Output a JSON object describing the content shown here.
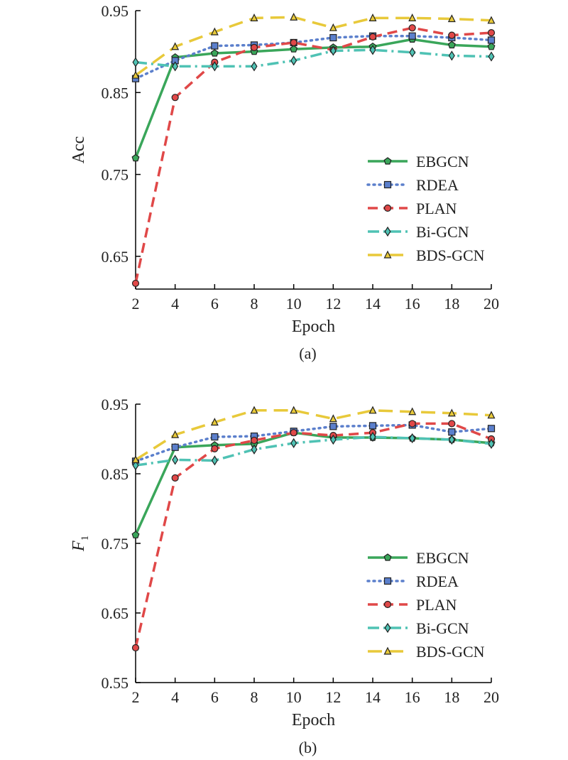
{
  "figure": {
    "captions": [
      "(a)",
      "(b)"
    ]
  },
  "colors": {
    "EBGCN": "#3aa65a",
    "RDEA": "#5b7fcc",
    "PLAN": "#e04848",
    "Bi-GCN": "#4fc2b4",
    "BDS-GCN": "#e8c93a"
  },
  "chart_data": [
    {
      "type": "line",
      "caption": "(a)",
      "xlabel": "Epoch",
      "ylabel": "Acc",
      "x": [
        2,
        4,
        6,
        8,
        10,
        12,
        14,
        16,
        18,
        20
      ],
      "xticks": [
        "2",
        "4",
        "6",
        "8",
        "10",
        "12",
        "14",
        "16",
        "18",
        "20"
      ],
      "ylim": [
        0.61,
        0.95
      ],
      "yticks": [
        "0.65",
        "0.75",
        "0.85",
        "0.95"
      ],
      "ytick_values": [
        0.65,
        0.75,
        0.85,
        0.95
      ],
      "legend_position": "lower-right",
      "series": [
        {
          "name": "EBGCN",
          "marker": "pentagon",
          "dash": "solid",
          "values": [
            0.77,
            0.893,
            0.898,
            0.9,
            0.903,
            0.905,
            0.906,
            0.915,
            0.908,
            0.906
          ]
        },
        {
          "name": "RDEA",
          "marker": "square",
          "dash": "dotted",
          "values": [
            0.867,
            0.889,
            0.907,
            0.908,
            0.911,
            0.917,
            0.919,
            0.919,
            0.917,
            0.914
          ]
        },
        {
          "name": "PLAN",
          "marker": "circle",
          "dash": "dashed",
          "values": [
            0.617,
            0.844,
            0.887,
            0.905,
            0.911,
            0.902,
            0.918,
            0.929,
            0.92,
            0.923
          ]
        },
        {
          "name": "Bi-GCN",
          "marker": "diamond",
          "dash": "dashdot",
          "values": [
            0.887,
            0.882,
            0.882,
            0.882,
            0.889,
            0.901,
            0.902,
            0.899,
            0.895,
            0.894
          ]
        },
        {
          "name": "BDS-GCN",
          "marker": "triangle",
          "dash": "longdash",
          "values": [
            0.871,
            0.906,
            0.924,
            0.941,
            0.942,
            0.929,
            0.941,
            0.941,
            0.94,
            0.938
          ]
        }
      ]
    },
    {
      "type": "line",
      "caption": "(b)",
      "xlabel": "Epoch",
      "ylabel": "F1",
      "ylabel_main": "F",
      "ylabel_sub": "1",
      "x": [
        2,
        4,
        6,
        8,
        10,
        12,
        14,
        16,
        18,
        20
      ],
      "xticks": [
        "2",
        "4",
        "6",
        "8",
        "10",
        "12",
        "14",
        "16",
        "18",
        "20"
      ],
      "ylim": [
        0.55,
        0.95
      ],
      "yticks": [
        "0.55",
        "0.65",
        "0.75",
        "0.85",
        "0.95"
      ],
      "ytick_values": [
        0.55,
        0.65,
        0.75,
        0.85,
        0.95
      ],
      "legend_position": "lower-right",
      "series": [
        {
          "name": "EBGCN",
          "marker": "pentagon",
          "dash": "solid",
          "values": [
            0.762,
            0.888,
            0.891,
            0.893,
            0.909,
            0.902,
            0.902,
            0.901,
            0.899,
            0.894
          ]
        },
        {
          "name": "RDEA",
          "marker": "square",
          "dash": "dotted",
          "values": [
            0.868,
            0.888,
            0.903,
            0.904,
            0.911,
            0.918,
            0.919,
            0.92,
            0.91,
            0.915
          ]
        },
        {
          "name": "PLAN",
          "marker": "circle",
          "dash": "dashed",
          "values": [
            0.6,
            0.844,
            0.886,
            0.898,
            0.909,
            0.905,
            0.909,
            0.922,
            0.922,
            0.9
          ]
        },
        {
          "name": "Bi-GCN",
          "marker": "diamond",
          "dash": "dashdot",
          "values": [
            0.862,
            0.87,
            0.869,
            0.885,
            0.894,
            0.899,
            0.903,
            0.901,
            0.899,
            0.893
          ]
        },
        {
          "name": "BDS-GCN",
          "marker": "triangle",
          "dash": "longdash",
          "values": [
            0.87,
            0.906,
            0.924,
            0.941,
            0.941,
            0.929,
            0.941,
            0.939,
            0.937,
            0.934
          ]
        }
      ]
    }
  ]
}
